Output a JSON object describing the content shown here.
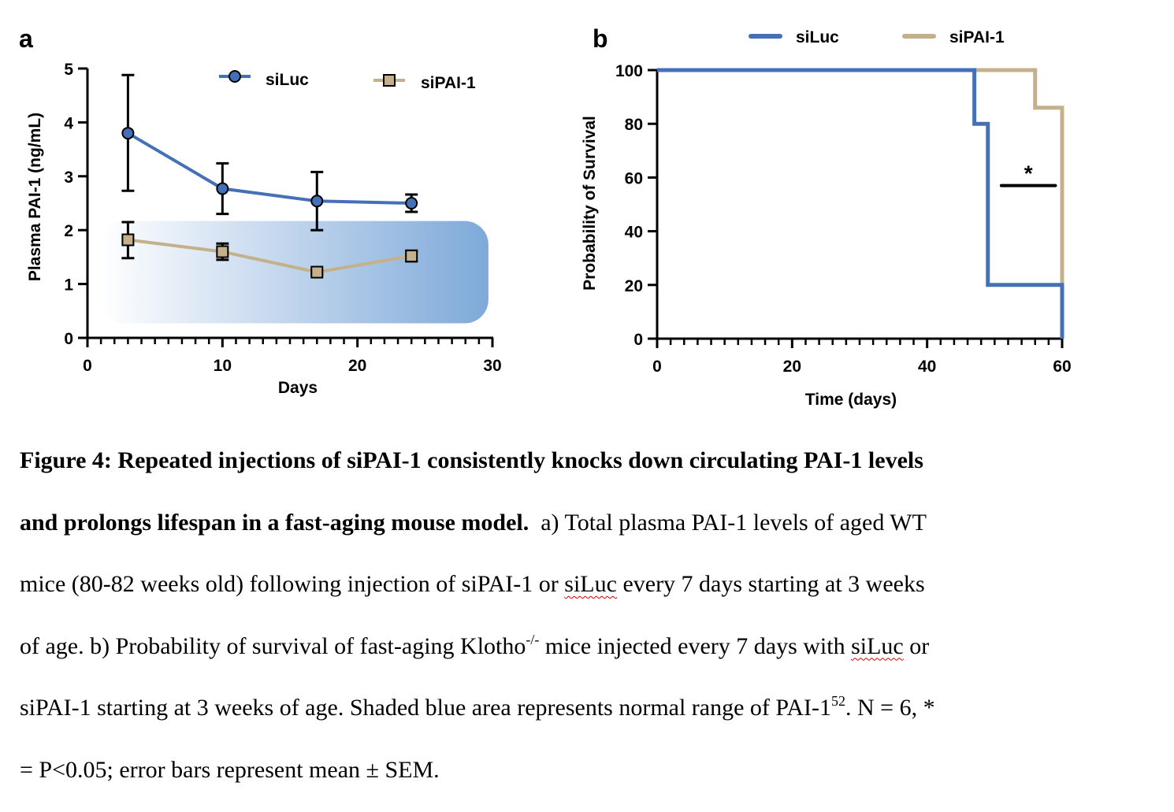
{
  "panels": {
    "a": "a",
    "b": "b"
  },
  "colors": {
    "siLuc": "#4470b8",
    "siPAI1": "#c4b08a",
    "shade_start": "#ffffff",
    "shade_end": "#7ea9d9",
    "axis": "#000000"
  },
  "chart_data": [
    {
      "type": "line",
      "panel": "a",
      "xlabel": "Days",
      "ylabel": "Plasma PAI-1 (ng/mL)",
      "xlim": [
        0,
        30
      ],
      "ylim": [
        0,
        5
      ],
      "xticks": [
        0,
        10,
        20,
        30
      ],
      "yticks": [
        0,
        1,
        2,
        3,
        4,
        5
      ],
      "legend": "top-right",
      "shaded_region": {
        "x": [
          1,
          29.7
        ],
        "y": [
          0.27,
          2.17
        ]
      },
      "series": [
        {
          "name": "siLuc",
          "marker": "circle",
          "x": [
            3,
            10,
            17,
            24
          ],
          "y": [
            3.8,
            2.77,
            2.54,
            2.5
          ],
          "err_low": [
            2.73,
            2.3,
            2.0,
            2.34
          ],
          "err_high": [
            4.88,
            3.24,
            3.08,
            2.66
          ]
        },
        {
          "name": "siPAI-1",
          "marker": "square",
          "x": [
            3,
            10,
            17,
            24
          ],
          "y": [
            1.82,
            1.6,
            1.22,
            1.52
          ],
          "err_low": [
            1.48,
            1.45,
            1.18,
            1.42
          ],
          "err_high": [
            2.15,
            1.75,
            1.26,
            1.62
          ]
        }
      ]
    },
    {
      "type": "line",
      "panel": "b",
      "step": true,
      "xlabel": "Time (days)",
      "ylabel": "Probability of Survival",
      "xlim": [
        0,
        60
      ],
      "ylim": [
        0,
        100
      ],
      "xticks": [
        0,
        20,
        40,
        60
      ],
      "yticks": [
        0,
        20,
        40,
        60,
        80,
        100
      ],
      "legend": "top",
      "annotation": {
        "text": "*",
        "x": [
          51,
          59
        ],
        "y": 57
      },
      "series": [
        {
          "name": "siLuc",
          "x": [
            0,
            47,
            49,
            60,
            60
          ],
          "y": [
            100,
            80,
            20,
            20,
            0
          ]
        },
        {
          "name": "siPAI-1",
          "x": [
            0,
            56,
            60,
            60
          ],
          "y": [
            100,
            86,
            86,
            20
          ]
        }
      ]
    }
  ],
  "caption": {
    "l1": "Figure 4: Repeated injections of siPAI-1 consistently knocks down circulating PAI-1 levels",
    "l2b": "and prolongs lifespan in a fast-aging mouse model.",
    "l2": "  a) Total plasma PAI-1 levels of aged WT",
    "l3a": "mice (80-82 weeks old) following injection of siPAI-1 or ",
    "l3s": "siLuc",
    "l3b": " every 7 days starting at 3 weeks",
    "l4a": "of age. b) Probability of survival of fast-aging Klotho",
    "l4sup": "-/-",
    "l4b": " mice injected every 7 days with ",
    "l4s": "siLuc",
    "l4c": " or",
    "l5a": "siPAI-1 starting at 3 weeks of age. Shaded blue area represents normal range of PAI-1",
    "l5sup": "52",
    "l5b": ". N = 6, *",
    "l6": "= P<0.05; error bars represent mean ± SEM."
  }
}
